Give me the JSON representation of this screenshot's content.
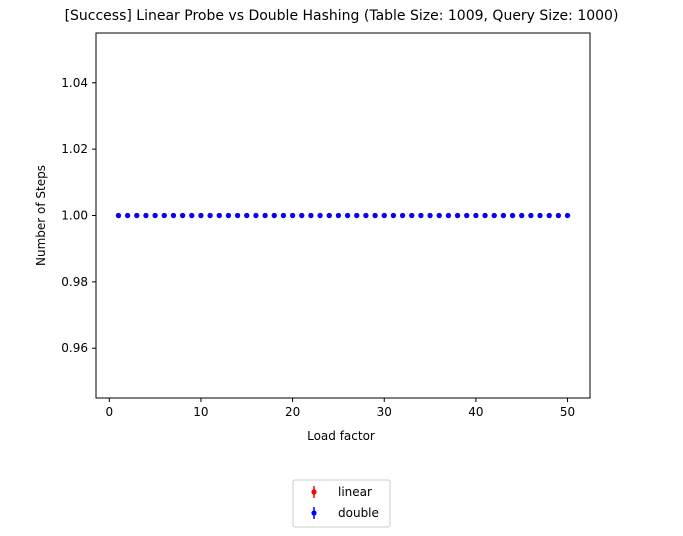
{
  "chart_data": {
    "type": "scatter",
    "title": "[Success] Linear Probe vs Double Hashing (Table Size: 1009, Query Size: 1000)",
    "xlabel": "Load factor",
    "ylabel": "Number of Steps",
    "xlim": [
      -1.45,
      52.45
    ],
    "ylim": [
      0.945,
      1.055
    ],
    "xticks": [
      0,
      10,
      20,
      30,
      40,
      50
    ],
    "yticks": [
      0.96,
      0.98,
      1.0,
      1.02,
      1.04
    ],
    "ytick_labels": [
      "0.96",
      "0.98",
      "1.00",
      "1.02",
      "1.04"
    ],
    "grid": false,
    "legend": "below plot, centered",
    "series": [
      {
        "name": "linear",
        "color": "#ff0000",
        "marker": "point with error bar",
        "x": [
          1,
          2,
          3,
          4,
          5,
          6,
          7,
          8,
          9,
          10,
          11,
          12,
          13,
          14,
          15,
          16,
          17,
          18,
          19,
          20,
          21,
          22,
          23,
          24,
          25,
          26,
          27,
          28,
          29,
          30,
          31,
          32,
          33,
          34,
          35,
          36,
          37,
          38,
          39,
          40,
          41,
          42,
          43,
          44,
          45,
          46,
          47,
          48,
          49,
          50
        ],
        "y": [
          1,
          1,
          1,
          1,
          1,
          1,
          1,
          1,
          1,
          1,
          1,
          1,
          1,
          1,
          1,
          1,
          1,
          1,
          1,
          1,
          1,
          1,
          1,
          1,
          1,
          1,
          1,
          1,
          1,
          1,
          1,
          1,
          1,
          1,
          1,
          1,
          1,
          1,
          1,
          1,
          1,
          1,
          1,
          1,
          1,
          1,
          1,
          1,
          1,
          1
        ]
      },
      {
        "name": "double",
        "color": "#0000ff",
        "marker": "point with error bar",
        "x": [
          1,
          2,
          3,
          4,
          5,
          6,
          7,
          8,
          9,
          10,
          11,
          12,
          13,
          14,
          15,
          16,
          17,
          18,
          19,
          20,
          21,
          22,
          23,
          24,
          25,
          26,
          27,
          28,
          29,
          30,
          31,
          32,
          33,
          34,
          35,
          36,
          37,
          38,
          39,
          40,
          41,
          42,
          43,
          44,
          45,
          46,
          47,
          48,
          49,
          50
        ],
        "y": [
          1,
          1,
          1,
          1,
          1,
          1,
          1,
          1,
          1,
          1,
          1,
          1,
          1,
          1,
          1,
          1,
          1,
          1,
          1,
          1,
          1,
          1,
          1,
          1,
          1,
          1,
          1,
          1,
          1,
          1,
          1,
          1,
          1,
          1,
          1,
          1,
          1,
          1,
          1,
          1,
          1,
          1,
          1,
          1,
          1,
          1,
          1,
          1,
          1,
          1
        ]
      }
    ]
  }
}
